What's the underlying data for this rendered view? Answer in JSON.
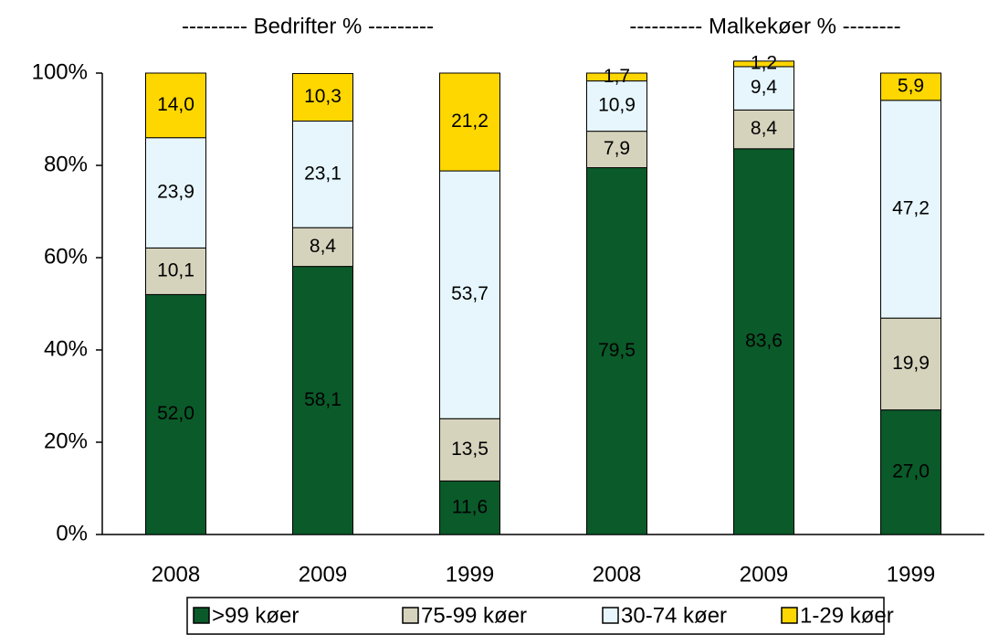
{
  "chart_data": {
    "type": "stacked_bar",
    "annotations": [
      "--------- Bedrifter % ---------",
      "---------- Malkekøer % --------"
    ],
    "categories": [
      "2008",
      "2009",
      "1999",
      "2008",
      "2009",
      "1999"
    ],
    "series": [
      {
        "name": ">99 køer",
        "color": "#0b5a2a",
        "values": [
          52.0,
          58.1,
          11.6,
          79.5,
          83.6,
          27.0
        ],
        "value_labels": [
          "52,0",
          "58,1",
          "11,6",
          "79,5",
          "83,6",
          "27,0"
        ]
      },
      {
        "name": "75-99 køer",
        "color": "#d6d3bd",
        "values": [
          10.1,
          8.4,
          13.5,
          7.9,
          8.4,
          19.9
        ],
        "value_labels": [
          "10,1",
          "8,4",
          "13,5",
          "7,9",
          "8,4",
          "19,9"
        ]
      },
      {
        "name": "30-74 køer",
        "color": "#e6f6fc",
        "values": [
          23.9,
          23.1,
          53.7,
          10.9,
          9.4,
          47.2
        ],
        "value_labels": [
          "23,9",
          "23,1",
          "53,7",
          "10,9",
          "9,4",
          "47,2"
        ]
      },
      {
        "name": "1-29 køer",
        "color": "#ffd700",
        "values": [
          14.0,
          10.3,
          21.2,
          1.7,
          1.2,
          5.9
        ],
        "value_labels": [
          "14,0",
          "10,3",
          "21,2",
          "1,7",
          "1,2",
          "5,9"
        ]
      }
    ],
    "ylim": [
      0,
      100
    ],
    "yticks": [
      {
        "value": 0,
        "label": "0%"
      },
      {
        "value": 20,
        "label": "20%"
      },
      {
        "value": 40,
        "label": "40%"
      },
      {
        "value": 60,
        "label": "60%"
      },
      {
        "value": 80,
        "label": "80%"
      },
      {
        "value": 100,
        "label": "100%"
      }
    ],
    "legend": "bottom"
  }
}
